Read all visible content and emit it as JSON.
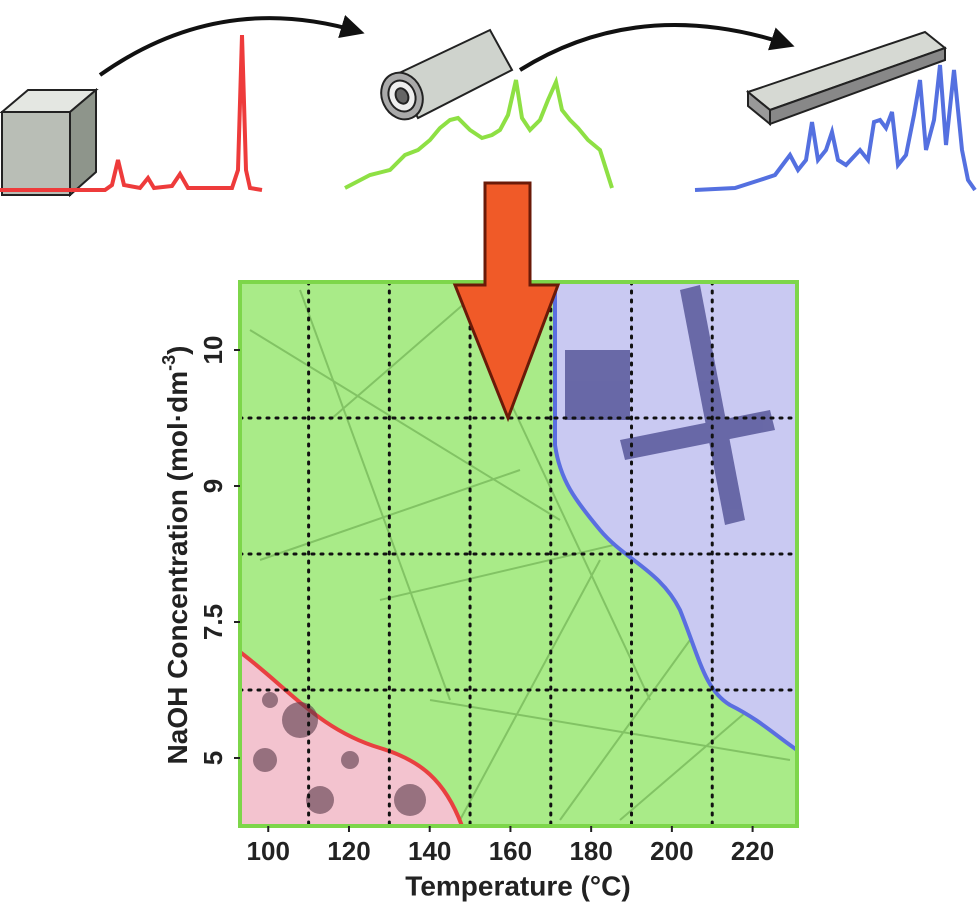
{
  "chart_data": {
    "type": "phase-diagram",
    "x_label": "Temperature (°C)",
    "y_label": {
      "text": "NaOH Concentration (mol·dm",
      "sup": "-3",
      "end": ")"
    },
    "xlim": [
      93,
      231
    ],
    "xticks": [
      100,
      120,
      140,
      160,
      180,
      200,
      220
    ],
    "xgrid": [
      110,
      130,
      150,
      170,
      190,
      210
    ],
    "yticks": [
      5,
      7.5,
      9,
      10
    ],
    "grid": true
  }
}
